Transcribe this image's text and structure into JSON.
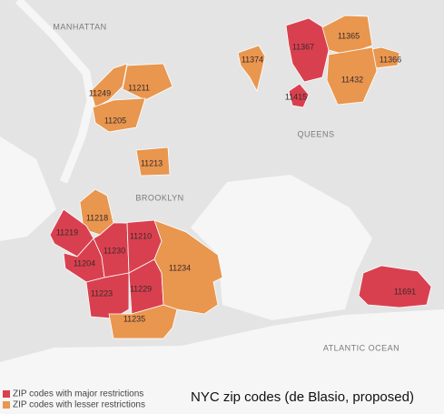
{
  "title": "NYC zip codes (de Blasio, proposed)",
  "places": [
    "MANHATTAN",
    "QUEENS",
    "BROOKLYN",
    "ATLANTIC OCEAN"
  ],
  "legend": [
    {
      "label": "ZIP codes with major restrictions",
      "color": "#d9404f"
    },
    {
      "label": "ZIP codes with lesser restrictions",
      "color": "#e9964f"
    }
  ],
  "zones": [
    {
      "zip": "11367",
      "level": 0
    },
    {
      "zip": "11415",
      "level": 0
    },
    {
      "zip": "11365",
      "level": 1
    },
    {
      "zip": "11374",
      "level": 1
    },
    {
      "zip": "11366",
      "level": 1
    },
    {
      "zip": "11432",
      "level": 1
    },
    {
      "zip": "11249",
      "level": 1
    },
    {
      "zip": "11211",
      "level": 1
    },
    {
      "zip": "11205",
      "level": 1
    },
    {
      "zip": "11213",
      "level": 1
    },
    {
      "zip": "11218",
      "level": 1
    },
    {
      "zip": "11219",
      "level": 0
    },
    {
      "zip": "11204",
      "level": 0
    },
    {
      "zip": "11230",
      "level": 0
    },
    {
      "zip": "11210",
      "level": 0
    },
    {
      "zip": "11223",
      "level": 0
    },
    {
      "zip": "11229",
      "level": 0
    },
    {
      "zip": "11234",
      "level": 1
    },
    {
      "zip": "11235",
      "level": 1
    },
    {
      "zip": "11691",
      "level": 0
    }
  ]
}
